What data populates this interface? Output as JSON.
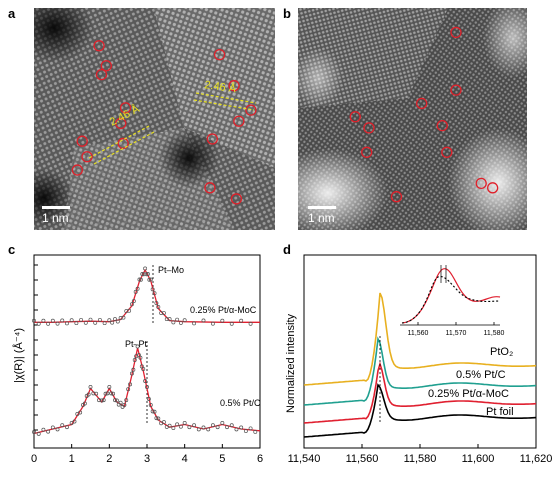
{
  "panels": {
    "a": {
      "letter": "a",
      "scale_bar": "1 nm",
      "lattice_labels": [
        "2.46 Å",
        "2.46 Å"
      ],
      "marker_color": "#e0202a",
      "lattice_color": "#e8e020",
      "markers": [
        [
          0.27,
          0.17
        ],
        [
          0.3,
          0.26
        ],
        [
          0.28,
          0.3
        ],
        [
          0.38,
          0.45
        ],
        [
          0.36,
          0.52
        ],
        [
          0.2,
          0.6
        ],
        [
          0.22,
          0.67
        ],
        [
          0.18,
          0.73
        ],
        [
          0.77,
          0.21
        ],
        [
          0.83,
          0.35
        ],
        [
          0.9,
          0.46
        ],
        [
          0.85,
          0.51
        ],
        [
          0.74,
          0.59
        ],
        [
          0.73,
          0.81
        ],
        [
          0.84,
          0.86
        ],
        [
          0.37,
          0.61
        ]
      ]
    },
    "b": {
      "letter": "b",
      "scale_bar": "1 nm",
      "marker_color": "#e0202a",
      "markers": [
        [
          0.69,
          0.11
        ],
        [
          0.69,
          0.37
        ],
        [
          0.54,
          0.43
        ],
        [
          0.25,
          0.49
        ],
        [
          0.31,
          0.54
        ],
        [
          0.63,
          0.53
        ],
        [
          0.3,
          0.65
        ],
        [
          0.65,
          0.65
        ],
        [
          0.43,
          0.85
        ],
        [
          0.8,
          0.79
        ],
        [
          0.85,
          0.81
        ]
      ]
    },
    "c": {
      "letter": "c",
      "y_label": "|χ(R)| (Å⁻⁴)",
      "x_ticks": [
        "0",
        "1",
        "2",
        "3",
        "4",
        "5",
        "6"
      ],
      "peak_labels": [
        "Pt–Mo",
        "Pt–Pt"
      ],
      "series_labels": [
        "0.25% Pt/α-MoC",
        "0.5% Pt/C"
      ]
    },
    "d": {
      "letter": "d",
      "y_label": "Normalized intensity",
      "x_ticks": [
        "11,540",
        "11,560",
        "11,580",
        "11,600",
        "11,620"
      ],
      "inset_x_ticks": [
        "11,560",
        "11,570",
        "11,580"
      ],
      "series_labels": [
        "PtO₂",
        "0.5% Pt/C",
        "0.25% Pt/α-MoC",
        "Pt foil"
      ],
      "colors": {
        "pto2": "#e8b020",
        "ptc": "#20a090",
        "moc": "#e02030",
        "foil": "#000000"
      }
    }
  },
  "chart_data": [
    {
      "type": "line",
      "panel": "c",
      "xlabel": "",
      "ylabel": "|χ(R)| (Å⁻⁴)",
      "xlim": [
        0,
        6
      ],
      "series": [
        {
          "name": "0.25% Pt/α-MoC",
          "x": [
            0,
            0.5,
            1,
            1.5,
            2,
            2.3,
            2.6,
            2.8,
            2.95,
            3.1,
            3.3,
            3.6,
            4,
            5,
            6
          ],
          "y": [
            0.05,
            0.05,
            0.06,
            0.07,
            0.06,
            0.1,
            0.35,
            0.8,
            1.0,
            0.8,
            0.3,
            0.08,
            0.06,
            0.05,
            0.05
          ]
        },
        {
          "name": "0.5% Pt/C",
          "x": [
            0,
            0.5,
            1,
            1.3,
            1.5,
            1.8,
            2.0,
            2.2,
            2.4,
            2.6,
            2.75,
            2.9,
            3.1,
            3.3,
            3.6,
            4,
            4.5,
            5,
            5.5,
            6
          ],
          "y": [
            0.05,
            0.1,
            0.15,
            0.35,
            0.55,
            0.4,
            0.55,
            0.4,
            0.35,
            0.7,
            1.0,
            0.75,
            0.35,
            0.2,
            0.12,
            0.15,
            0.1,
            0.15,
            0.1,
            0.08
          ]
        }
      ]
    },
    {
      "type": "line",
      "panel": "d",
      "xlabel": "",
      "ylabel": "Normalized intensity",
      "xlim": [
        11540,
        11620
      ],
      "series": [
        {
          "name": "PtO₂"
        },
        {
          "name": "0.5% Pt/C"
        },
        {
          "name": "0.25% Pt/α-MoC"
        },
        {
          "name": "Pt foil"
        }
      ]
    }
  ]
}
